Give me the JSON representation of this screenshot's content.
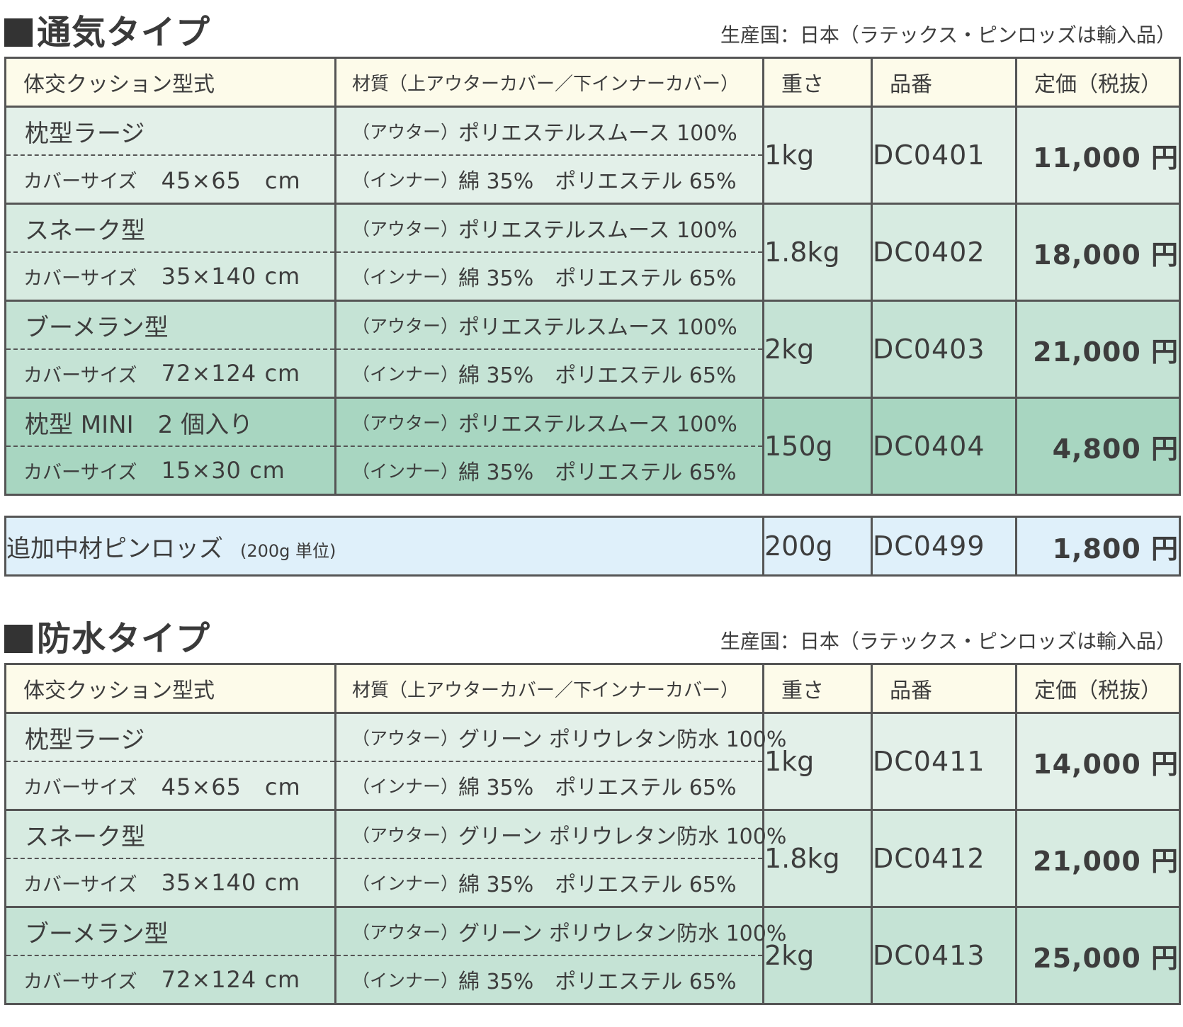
{
  "sections": [
    {
      "title": "通気タイプ",
      "origin": "生産国：日本（ラテックス・ピンロッズは輸入品）",
      "headers": {
        "model": "体交クッション型式",
        "material": "材質（上アウターカバー／下インナーカバー）",
        "weight": "重さ",
        "code": "品番",
        "price": "定価（税抜）"
      },
      "rows": [
        {
          "name": "枕型ラージ",
          "size_label": "カバーサイズ",
          "size": "45×65　cm",
          "outer": "ポリエステルスムース 100%",
          "inner": "綿 35%　ポリエステル 65%",
          "weight": "1kg",
          "code": "DC0401",
          "price": "11,000 円"
        },
        {
          "name": "スネーク型",
          "size_label": "カバーサイズ",
          "size": "35×140 cm",
          "outer": "ポリエステルスムース 100%",
          "inner": "綿 35%　ポリエステル 65%",
          "weight": "1.8kg",
          "code": "DC0402",
          "price": "18,000 円"
        },
        {
          "name": "ブーメラン型",
          "size_label": "カバーサイズ",
          "size": "72×124 cm",
          "outer": "ポリエステルスムース 100%",
          "inner": "綿 35%　ポリエステル 65%",
          "weight": "2kg",
          "code": "DC0403",
          "price": "21,000 円"
        },
        {
          "name": "枕型 MINI　2 個入り",
          "size_label": "カバーサイズ",
          "size": "15×30 cm",
          "outer": "ポリエステルスムース 100%",
          "inner": "綿 35%　ポリエステル 65%",
          "weight": "150g",
          "code": "DC0404",
          "price": "4,800 円"
        }
      ],
      "addon": {
        "name": "追加中材ピンロッズ",
        "note": "(200g 単位)",
        "weight": "200g",
        "code": "DC0499",
        "price": "1,800 円"
      }
    },
    {
      "title": "防水タイプ",
      "origin": "生産国：日本（ラテックス・ピンロッズは輸入品）",
      "headers": {
        "model": "体交クッション型式",
        "material": "材質（上アウターカバー／下インナーカバー）",
        "weight": "重さ",
        "code": "品番",
        "price": "定価（税抜）"
      },
      "rows": [
        {
          "name": "枕型ラージ",
          "size_label": "カバーサイズ",
          "size": "45×65　cm",
          "outer": "グリーン ポリウレタン防水 100%",
          "inner": "綿 35%　ポリエステル 65%",
          "weight": "1kg",
          "code": "DC0411",
          "price": "14,000 円"
        },
        {
          "name": "スネーク型",
          "size_label": "カバーサイズ",
          "size": "35×140 cm",
          "outer": "グリーン ポリウレタン防水 100%",
          "inner": "綿 35%　ポリエステル 65%",
          "weight": "1.8kg",
          "code": "DC0412",
          "price": "21,000 円"
        },
        {
          "name": "ブーメラン型",
          "size_label": "カバーサイズ",
          "size": "72×124 cm",
          "outer": "グリーン ポリウレタン防水 100%",
          "inner": "綿 35%　ポリエステル 65%",
          "weight": "2kg",
          "code": "DC0413",
          "price": "25,000 円"
        }
      ]
    }
  ],
  "labels": {
    "outer_prefix": "（アウター）",
    "inner_prefix": "（インナー）"
  }
}
